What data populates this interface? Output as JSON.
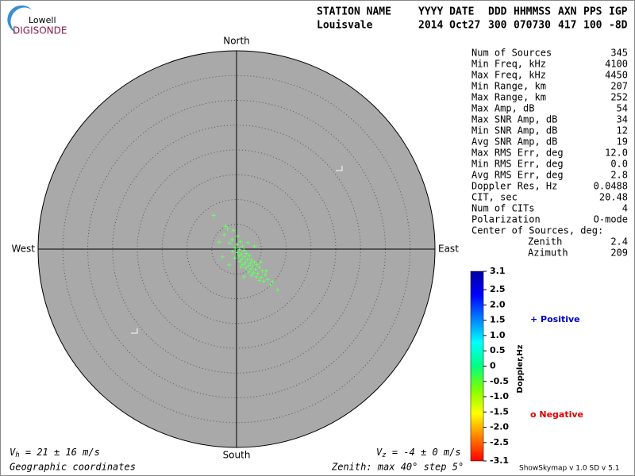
{
  "logo": {
    "top": "Lowell",
    "bottom": "DIGISONDE"
  },
  "header": {
    "fields": [
      "STATION NAME",
      "YYYY DATE",
      "DDD",
      "HHMMSS",
      "AXN",
      "PPS",
      "IGP"
    ],
    "values": [
      "Louisvale",
      "2014 Oct27",
      "300",
      "070730",
      "417",
      "100",
      "-8D"
    ]
  },
  "stats": {
    "rows": [
      [
        "Num of Sources",
        "345"
      ],
      [
        "Min Freq, kHz",
        "4100"
      ],
      [
        "Max Freq, kHz",
        "4450"
      ],
      [
        "Min Range, km",
        "207"
      ],
      [
        "Max Range, km",
        "252"
      ],
      [
        "Max Amp, dB",
        "54"
      ],
      [
        "Max SNR Amp, dB",
        "34"
      ],
      [
        "Min SNR Amp, dB",
        "12"
      ],
      [
        "Avg SNR Amp, dB",
        "19"
      ],
      [
        "Max RMS Err, deg",
        "12.0"
      ],
      [
        "Min RMS Err, deg",
        "0.0"
      ],
      [
        "Avg RMS Err, deg",
        "2.8"
      ],
      [
        "Doppler Res, Hz",
        "0.0488"
      ],
      [
        "CIT, sec",
        "20.48"
      ],
      [
        "Num of CITs",
        "4"
      ],
      [
        "Polarization",
        "O-mode"
      ]
    ],
    "center_title": "Center of Sources, deg:",
    "center_rows": [
      [
        "Zenith",
        "2.4"
      ],
      [
        "Azimuth",
        "209"
      ]
    ]
  },
  "chart_data": {
    "type": "skymap",
    "compass": {
      "north": "North",
      "south": "South",
      "east": "East",
      "west": "West"
    },
    "xlim": [
      -40,
      40
    ],
    "ylim": [
      -40,
      40
    ],
    "rticks": [
      5,
      10,
      15,
      20,
      25,
      30,
      35
    ],
    "series": [
      {
        "name": "Sources",
        "color": "#66ff66",
        "x": [
          -4.6,
          -1.8,
          -0.6,
          -2.5,
          0.3,
          -0.9,
          0.8,
          -1.4,
          0.1,
          1.2,
          -0.3,
          0.6,
          1.5,
          -0.8,
          0.2,
          1.0,
          2.0,
          0.5,
          1.6,
          2.6,
          -0.4,
          1.1,
          2.2,
          3.0,
          0.7,
          1.8,
          2.8,
          3.6,
          1.3,
          2.4,
          3.3,
          4.1,
          1.9,
          2.9,
          3.8,
          4.6,
          0.9,
          2.5,
          3.4,
          4.3,
          5.2,
          3.0,
          4.0,
          5.0,
          5.8,
          4.6,
          5.5,
          6.3,
          7.3,
          6.8,
          8.3,
          -3.5,
          -2.8,
          -1.5,
          3.6,
          2.3,
          -2.2,
          4.9,
          6.0,
          1.5
        ],
        "values": [
          6.8,
          4.1,
          3.8,
          2.9,
          2.6,
          1.9,
          1.5,
          1.2,
          0.9,
          0.6,
          0.2,
          -0.1,
          -0.3,
          -0.5,
          -0.7,
          -1.0,
          -0.9,
          -1.4,
          -1.5,
          -1.3,
          -1.8,
          -2.0,
          -2.1,
          -2.2,
          -2.5,
          -2.7,
          -2.8,
          -2.6,
          -3.1,
          -3.3,
          -3.4,
          -3.1,
          -3.8,
          -4.0,
          -4.1,
          -3.7,
          -3.6,
          -4.6,
          -4.8,
          -4.9,
          -4.4,
          -5.3,
          -5.6,
          -5.7,
          -5.2,
          -6.3,
          -6.5,
          -6.1,
          -6.6,
          -7.2,
          -8.2,
          1.4,
          -1.5,
          -3.2,
          0.6,
          1.3,
          4.6,
          -2.6,
          -4.4,
          -5.6
        ]
      }
    ],
    "colorbar": {
      "label": "Doppler,Hz",
      "ylim": [
        -3.1,
        3.1
      ],
      "yticks": [
        3.1,
        2.5,
        {
          "value": 2,
          "label": "2.0"
        },
        1.5,
        {
          "value": 1,
          "label": "1.0"
        },
        0.5,
        0,
        -0.5,
        {
          "value": -1,
          "label": "-1.0"
        },
        -1.5,
        {
          "value": -2,
          "label": "-2.0"
        },
        -2.5,
        -3.1
      ],
      "colors": [
        "#ff0000",
        "#ff8000",
        "#ffff00",
        "#80ff00",
        "#00ff80",
        "#00ffff",
        "#0080ff",
        "#0000ff",
        "#0000a0"
      ]
    },
    "legend": {
      "positive": "+ Positive",
      "negative": "o Negative"
    }
  },
  "footer": {
    "vh": {
      "symbol": "V",
      "sub": "h",
      "text": " = 21 ± 16 m/s"
    },
    "vz": {
      "symbol": "V",
      "sub": "z",
      "text": " = -4 ± 0 m/s"
    },
    "coords": "Geographic coordinates",
    "zenith": "Zenith: max 40°  step 5°",
    "version": "ShowSkymap v 1.0  SD v 5.1"
  }
}
